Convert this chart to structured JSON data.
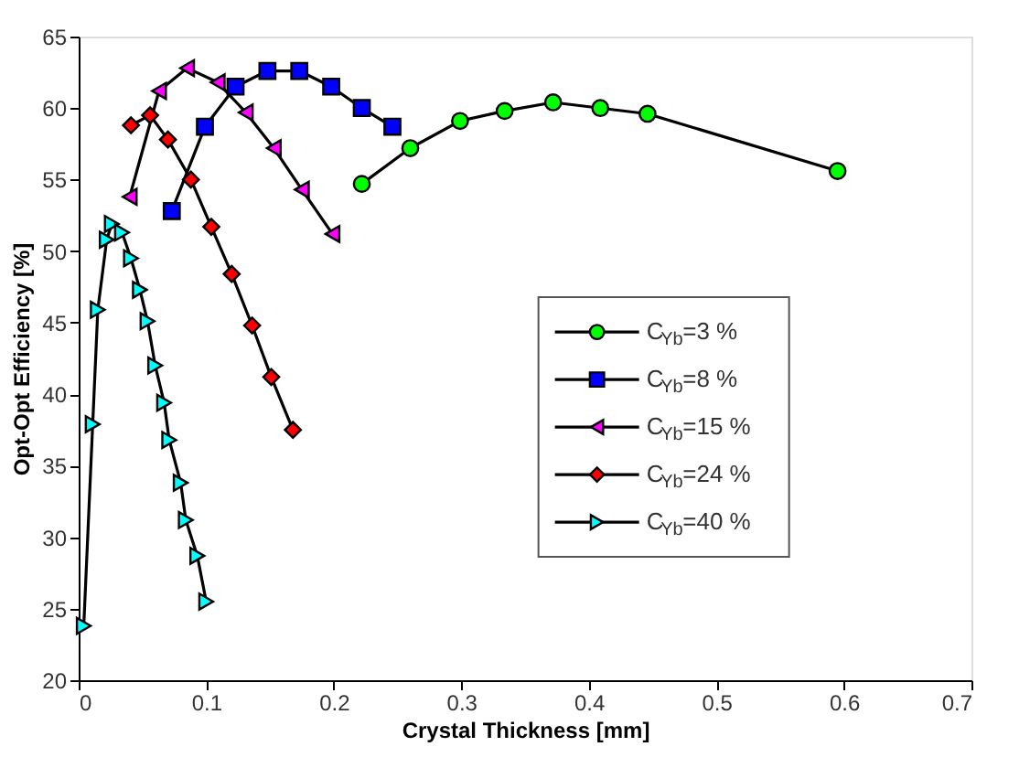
{
  "chart_data": {
    "type": "line",
    "xlabel": "Crystal Thickness [mm]",
    "ylabel": "Opt-Opt Efficiency [%]",
    "xlim": [
      0,
      0.7
    ],
    "ylim": [
      20,
      65
    ],
    "xticks": [
      0,
      0.1,
      0.2,
      0.3,
      0.4,
      0.5,
      0.6,
      0.7
    ],
    "yticks": [
      20,
      25,
      30,
      35,
      40,
      45,
      50,
      55,
      60,
      65
    ],
    "grid": false,
    "legend": "right",
    "line_style": "solid",
    "series": [
      {
        "name": "C$_{Yb}$=3 %",
        "color": "#00ff00",
        "marker": "circle",
        "x": [
          0.222,
          0.26,
          0.299,
          0.334,
          0.372,
          0.409,
          0.446,
          0.595
        ],
        "values": [
          54.7,
          57.2,
          59.1,
          59.8,
          60.4,
          60.0,
          59.6,
          55.6
        ]
      },
      {
        "name": "C$_{Yb}$=8 %",
        "color": "#0000ff",
        "marker": "square",
        "x": [
          0.073,
          0.099,
          0.123,
          0.148,
          0.173,
          0.198,
          0.222,
          0.246
        ],
        "values": [
          52.8,
          58.7,
          61.5,
          62.6,
          62.6,
          61.5,
          60.0,
          58.7
        ]
      },
      {
        "name": "C$_{Yb}$=15 %",
        "color": "#ff00ff",
        "marker": "triangle-left",
        "x": [
          0.04,
          0.063,
          0.085,
          0.109,
          0.131,
          0.153,
          0.175,
          0.199
        ],
        "values": [
          53.8,
          61.2,
          62.8,
          61.8,
          59.7,
          57.2,
          54.3,
          51.2
        ]
      },
      {
        "name": "C$_{Yb}$=24 %",
        "color": "#ff0000",
        "marker": "diamond",
        "x": [
          0.041,
          0.056,
          0.07,
          0.088,
          0.104,
          0.12,
          0.136,
          0.151,
          0.168
        ],
        "values": [
          58.8,
          59.5,
          57.8,
          55.0,
          51.7,
          48.4,
          44.8,
          41.2,
          37.5
        ]
      },
      {
        "name": "C$_{Yb}$=40 %",
        "color": "#00ffff",
        "marker": "triangle-right",
        "x": [
          0.004,
          0.011,
          0.015,
          0.022,
          0.026,
          0.034,
          0.041,
          0.048,
          0.054,
          0.06,
          0.067,
          0.071,
          0.08,
          0.084,
          0.093,
          0.1
        ],
        "values": [
          23.8,
          37.9,
          45.9,
          50.8,
          51.9,
          51.3,
          49.5,
          47.3,
          45.1,
          42.0,
          39.4,
          36.8,
          33.8,
          31.2,
          28.7,
          25.5
        ]
      }
    ]
  }
}
